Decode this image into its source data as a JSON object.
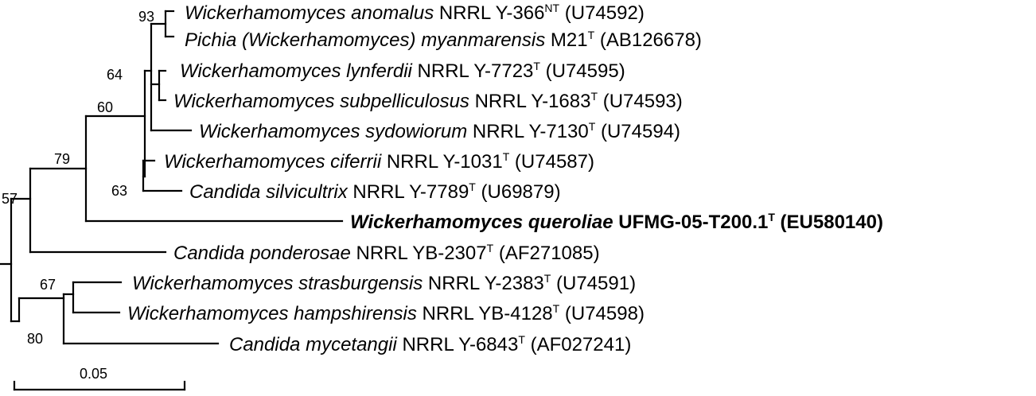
{
  "taxa": [
    {
      "id": "t1",
      "genus": "Wickerhamomyces anomalus",
      "strain": " NRRL Y-366",
      "sup": "NT",
      "acc": " (U74592)",
      "bold": false
    },
    {
      "id": "t2",
      "genus": "Pichia (",
      "genus_b": "Wickerhamomyces",
      "genus_c": ") myanmarensis",
      "strain": " M21",
      "sup": "T",
      "acc": " (AB126678)",
      "bold": false,
      "mixed": true
    },
    {
      "id": "t3",
      "genus": "Wickerhamomyces lynferdii",
      "strain": " NRRL Y-7723",
      "sup": "T",
      "acc": " (U74595)",
      "bold": false
    },
    {
      "id": "t4",
      "genus": "Wickerhamomyces subpelliculosus",
      "strain": " NRRL Y-1683",
      "sup": "T",
      "acc": " (U74593)",
      "bold": false
    },
    {
      "id": "t5",
      "genus": "Wickerhamomyces sydowiorum",
      "strain": " NRRL Y-7130",
      "sup": "T",
      "acc": " (U74594)",
      "bold": false
    },
    {
      "id": "t6",
      "genus": "Wickerhamomyces ciferrii",
      "strain": "  NRRL Y-1031",
      "sup": "T",
      "acc": " (U74587)",
      "bold": false
    },
    {
      "id": "t7",
      "genus": "Candida silvicultrix",
      "strain": " NRRL Y-7789",
      "sup": "T",
      "acc": " (U69879)",
      "bold": false
    },
    {
      "id": "t8",
      "genus": "Wickerhamomyces queroliae",
      "strain": " UFMG-05-T200.1",
      "sup": "T",
      "acc": " (EU580140)",
      "bold": true
    },
    {
      "id": "t9",
      "genus": "Candida ponderosae",
      "strain": " NRRL YB-2307",
      "sup": "T",
      "acc": " (AF271085)",
      "bold": false
    },
    {
      "id": "t10",
      "genus": "Wickerhamomyces strasburgensis",
      "strain": " NRRL Y-2383",
      "sup": "T",
      "acc": " (U74591)",
      "bold": false
    },
    {
      "id": "t11",
      "genus": "Wickerhamomyces hampshirensis",
      "strain": " NRRL YB-4128",
      "sup": "T",
      "acc": " (U74598)",
      "bold": false
    },
    {
      "id": "t12",
      "genus": "Candida mycetangii",
      "strain": " NRRL Y-6843",
      "sup": "T",
      "acc": " (AF027241)",
      "bold": false
    }
  ],
  "bootstrap": {
    "b93": "93",
    "b64": "64",
    "b60": "60",
    "b79": "79",
    "b63": "63",
    "b57": "57",
    "b67": "67",
    "b80": "80"
  },
  "scale_bar": {
    "label": "0.05"
  }
}
